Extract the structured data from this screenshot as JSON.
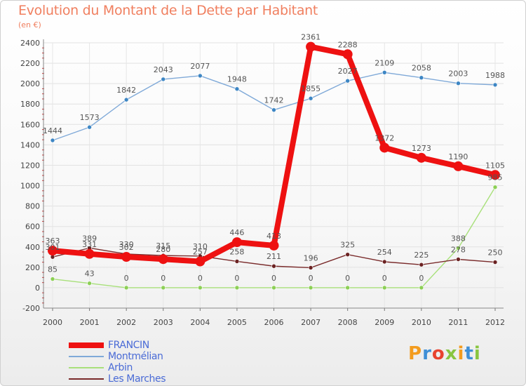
{
  "title": "Evolution du Montant de la Dette par Habitant",
  "subtitle": "(en €)",
  "logo": {
    "text": "Proxiti",
    "letter_colors": [
      "#f39c1e",
      "#3f8fd6",
      "#e8432f",
      "#88c540",
      "#f39c1e",
      "#3f8fd6",
      "#88c540"
    ]
  },
  "legend": [
    {
      "name": "FRANCIN",
      "color": "#ee1111",
      "width": 8
    },
    {
      "name": "Montmélian",
      "color": "#7fa9d8",
      "width": 2
    },
    {
      "name": "Arbin",
      "color": "#a8e07a",
      "width": 2
    },
    {
      "name": "Les Marches",
      "color": "#7a2b2b",
      "width": 2
    }
  ],
  "chart_data": {
    "type": "line",
    "title": "Evolution du Montant de la Dette par Habitant",
    "subtitle": "(en €)",
    "x": [
      "2000",
      "2001",
      "2002",
      "2003",
      "2004",
      "2005",
      "2006",
      "2007",
      "2008",
      "2009",
      "2010",
      "2011",
      "2012"
    ],
    "ylim": [
      -200,
      2400
    ],
    "yticks": [
      -200,
      0,
      200,
      400,
      600,
      800,
      1000,
      1200,
      1400,
      1600,
      1800,
      2000,
      2200,
      2400
    ],
    "grid": true,
    "legend_position": "bottom-left",
    "series": [
      {
        "name": "FRANCIN",
        "color": "#ee1111",
        "marker_color": "#ee1111",
        "values": [
          363,
          331,
          302,
          280,
          257,
          446,
          413,
          2361,
          2288,
          1372,
          1273,
          1190,
          1105
        ],
        "labels": [
          "363",
          "331",
          "302",
          "280",
          "257",
          "446",
          "413",
          "2361",
          "2288",
          "1372",
          "1273",
          "1190",
          "1105"
        ]
      },
      {
        "name": "Montmélian",
        "color": "#7fa9d8",
        "marker_color": "#3d86c4",
        "values": [
          1444,
          1573,
          1842,
          2043,
          2077,
          1948,
          1742,
          1855,
          2027,
          2109,
          2058,
          2003,
          1988
        ],
        "labels": [
          "1444",
          "1573",
          "1842",
          "2043",
          "2077",
          "1948",
          "1742",
          "1855",
          "2027",
          "2109",
          "2058",
          "2003",
          "1988"
        ]
      },
      {
        "name": "Arbin",
        "color": "#a8e07a",
        "marker_color": "#8ccf55",
        "values": [
          85,
          43,
          0,
          0,
          0,
          0,
          0,
          0,
          0,
          0,
          0,
          388,
          985
        ],
        "labels": [
          "85",
          "43",
          "0",
          "0",
          "0",
          "0",
          "0",
          "0",
          "0",
          "0",
          "0",
          "388",
          "985"
        ]
      },
      {
        "name": "Les Marches",
        "color": "#7a2b2b",
        "marker_color": "#6b2222",
        "values": [
          301,
          389,
          330,
          315,
          310,
          258,
          211,
          196,
          325,
          254,
          225,
          278,
          250
        ],
        "labels": [
          "301",
          "389",
          "330",
          "315",
          "310",
          "258",
          "211",
          "196",
          "325",
          "254",
          "225",
          "278",
          "250"
        ]
      }
    ]
  }
}
